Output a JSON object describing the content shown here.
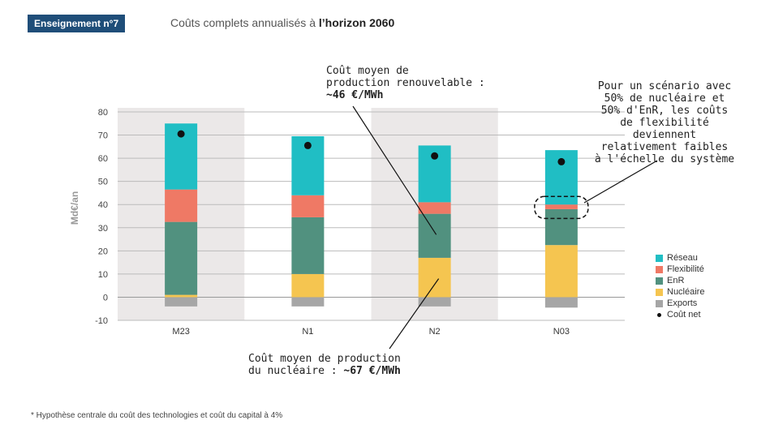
{
  "header": {
    "badge": "Enseignement n°7",
    "title_prefix": "Coûts complets annualisés à ",
    "title_bold": "l’horizon 2060"
  },
  "annotations": {
    "renew_line1": "Coût moyen de",
    "renew_line2": "production renouvelable :",
    "renew_value": "~46 €/MWh",
    "nuc_line1": "Coût moyen de production",
    "nuc_line2": "du nucléaire : ",
    "nuc_value": "~67 €/MWh",
    "flex_text_1": "Pour un scénario avec",
    "flex_text_2": "50% de nucléaire et",
    "flex_text_3": "50% d'EnR, les coûts",
    "flex_text_4": "de flexibilité deviennent",
    "flex_text_5": "relativement faibles",
    "flex_text_6": "à l'échelle du système"
  },
  "footnote": "*   Hypothèse centrale du coût des technologies et coût du capital à 4%",
  "colors": {
    "reseau": "#20bec4",
    "flexibilite": "#ef7965",
    "enr": "#51917f",
    "nucleaire": "#f5c550",
    "exports": "#a6a6a6",
    "band": "#ebe8e8",
    "badge": "#1f4e79"
  },
  "chart_data": {
    "type": "bar",
    "stacked": true,
    "title": "",
    "xlabel": "",
    "ylabel": "Md€/an",
    "ylim": [
      -10,
      80
    ],
    "yticks": [
      -10,
      0,
      10,
      20,
      30,
      40,
      50,
      60,
      70,
      80
    ],
    "categories": [
      "M23",
      "N1",
      "N2",
      "N03"
    ],
    "series": [
      {
        "name": "Exports",
        "color": "#a6a6a6",
        "values": [
          -4,
          -4,
          -4,
          -4.5
        ]
      },
      {
        "name": "Nucléaire",
        "color": "#f5c550",
        "values": [
          1,
          10,
          17,
          22.5
        ]
      },
      {
        "name": "EnR",
        "color": "#51917f",
        "values": [
          31.5,
          24.5,
          19,
          15.5
        ]
      },
      {
        "name": "Flexibilité",
        "color": "#ef7965",
        "values": [
          14,
          9.5,
          5,
          2
        ]
      },
      {
        "name": "Réseau",
        "color": "#20bec4",
        "values": [
          28.5,
          25.5,
          24.5,
          23.5
        ]
      }
    ],
    "net_cost": {
      "name": "Coût net",
      "values": [
        70.5,
        65.5,
        61,
        58.5
      ]
    },
    "legend": [
      "Réseau",
      "Flexibilité",
      "EnR",
      "Nucléaire",
      "Exports",
      "Coût net"
    ],
    "legend_position": "right",
    "grid": true
  }
}
